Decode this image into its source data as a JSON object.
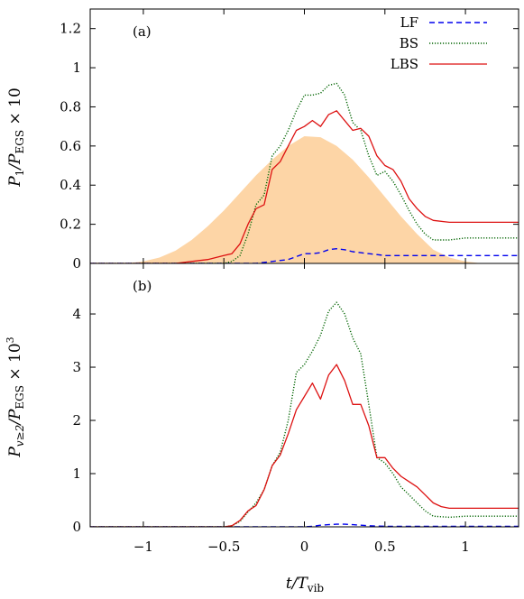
{
  "chart_data": {
    "type": "line",
    "xlabel": "t/T_vib",
    "xlim": [
      -1.33,
      1.33
    ],
    "xticks": [
      -1,
      -0.5,
      0,
      0.5,
      1
    ],
    "xtick_labels": [
      "−1",
      "−0.5",
      "0",
      "0.5",
      "1"
    ],
    "legend": {
      "placement": "top-right",
      "entries": [
        {
          "name": "LF",
          "color": "#0000ee",
          "style": "dashed"
        },
        {
          "name": "BS",
          "color": "#006400",
          "style": "dotted"
        },
        {
          "name": "LBS",
          "color": "#dd1111",
          "style": "solid"
        }
      ]
    },
    "panels": [
      {
        "label": "(a)",
        "ylabel": "P_1/P_EGS × 10",
        "ylim": [
          0,
          1.3
        ],
        "yticks": [
          0,
          0.2,
          0.4,
          0.6,
          0.8,
          1,
          1.2
        ],
        "ytick_labels": [
          "0",
          "0.2",
          "0.4",
          "0.6",
          "0.8",
          "1",
          "1.2"
        ],
        "pulse": {
          "color": "#fdd5a6",
          "x": [
            -1.1,
            -1.0,
            -0.9,
            -0.8,
            -0.7,
            -0.6,
            -0.5,
            -0.4,
            -0.3,
            -0.2,
            -0.1,
            0.0,
            0.1,
            0.2,
            0.3,
            0.4,
            0.5,
            0.6,
            0.7,
            0.8,
            0.9,
            1.0,
            1.1
          ],
          "y": [
            0.0,
            0.01,
            0.03,
            0.065,
            0.12,
            0.19,
            0.27,
            0.36,
            0.45,
            0.53,
            0.6,
            0.65,
            0.645,
            0.6,
            0.53,
            0.44,
            0.34,
            0.24,
            0.15,
            0.07,
            0.03,
            0.01,
            0.0
          ]
        },
        "series": [
          {
            "name": "LF",
            "x": [
              -1.33,
              -0.4,
              -0.3,
              -0.2,
              -0.1,
              0.0,
              0.05,
              0.1,
              0.15,
              0.2,
              0.25,
              0.3,
              0.35,
              0.4,
              0.45,
              0.5,
              0.6,
              0.7,
              0.8,
              1.0,
              1.2,
              1.33
            ],
            "y": [
              0.0,
              0.0,
              0.0,
              0.01,
              0.02,
              0.05,
              0.05,
              0.055,
              0.07,
              0.075,
              0.07,
              0.06,
              0.055,
              0.05,
              0.045,
              0.04,
              0.04,
              0.04,
              0.04,
              0.04,
              0.04,
              0.04
            ]
          },
          {
            "name": "BS",
            "x": [
              -1.33,
              -0.5,
              -0.45,
              -0.4,
              -0.35,
              -0.3,
              -0.25,
              -0.2,
              -0.15,
              -0.1,
              -0.05,
              0.0,
              0.05,
              0.1,
              0.15,
              0.2,
              0.25,
              0.3,
              0.35,
              0.4,
              0.45,
              0.5,
              0.55,
              0.6,
              0.65,
              0.7,
              0.75,
              0.8,
              0.9,
              1.0,
              1.2,
              1.33
            ],
            "y": [
              0.0,
              0.0,
              0.01,
              0.04,
              0.15,
              0.3,
              0.35,
              0.55,
              0.6,
              0.68,
              0.78,
              0.86,
              0.86,
              0.87,
              0.91,
              0.92,
              0.86,
              0.72,
              0.68,
              0.55,
              0.45,
              0.47,
              0.42,
              0.35,
              0.27,
              0.2,
              0.15,
              0.12,
              0.12,
              0.13,
              0.13,
              0.13
            ]
          },
          {
            "name": "LBS",
            "x": [
              -1.33,
              -0.8,
              -0.7,
              -0.6,
              -0.5,
              -0.45,
              -0.4,
              -0.35,
              -0.3,
              -0.25,
              -0.2,
              -0.15,
              -0.1,
              -0.05,
              0.0,
              0.05,
              0.1,
              0.15,
              0.2,
              0.25,
              0.3,
              0.35,
              0.4,
              0.45,
              0.5,
              0.55,
              0.6,
              0.65,
              0.7,
              0.75,
              0.8,
              0.9,
              1.0,
              1.2,
              1.33
            ],
            "y": [
              0.0,
              0.0,
              0.01,
              0.02,
              0.04,
              0.05,
              0.1,
              0.2,
              0.28,
              0.3,
              0.48,
              0.52,
              0.6,
              0.68,
              0.7,
              0.73,
              0.7,
              0.76,
              0.78,
              0.73,
              0.68,
              0.69,
              0.65,
              0.55,
              0.5,
              0.48,
              0.42,
              0.33,
              0.28,
              0.24,
              0.22,
              0.21,
              0.21,
              0.21,
              0.21
            ]
          }
        ]
      },
      {
        "label": "(b)",
        "ylabel": "P_{v≥2}/P_EGS × 10^3",
        "ylim": [
          0,
          4.95
        ],
        "yticks": [
          0,
          1,
          2,
          3,
          4
        ],
        "ytick_labels": [
          "0",
          "1",
          "2",
          "3",
          "4"
        ],
        "series": [
          {
            "name": "LF",
            "x": [
              -1.33,
              0.0,
              0.05,
              0.1,
              0.15,
              0.2,
              0.25,
              0.3,
              0.35,
              0.4,
              0.5,
              0.6,
              0.7,
              0.8,
              1.0,
              1.33
            ],
            "y": [
              0.0,
              0.0,
              0.01,
              0.03,
              0.04,
              0.05,
              0.05,
              0.04,
              0.03,
              0.02,
              0.01,
              0.01,
              0.01,
              0.01,
              0.01,
              0.01
            ]
          },
          {
            "name": "BS",
            "x": [
              -1.33,
              -0.5,
              -0.45,
              -0.4,
              -0.35,
              -0.3,
              -0.25,
              -0.2,
              -0.15,
              -0.1,
              -0.05,
              0.0,
              0.05,
              0.1,
              0.15,
              0.2,
              0.25,
              0.3,
              0.35,
              0.4,
              0.45,
              0.5,
              0.55,
              0.6,
              0.65,
              0.7,
              0.75,
              0.8,
              0.9,
              1.0,
              1.33
            ],
            "y": [
              0.0,
              0.0,
              0.02,
              0.1,
              0.28,
              0.45,
              0.7,
              1.15,
              1.4,
              2.0,
              2.9,
              3.05,
              3.3,
              3.6,
              4.05,
              4.22,
              4.0,
              3.55,
              3.25,
              2.3,
              1.3,
              1.2,
              1.0,
              0.75,
              0.6,
              0.45,
              0.3,
              0.2,
              0.18,
              0.2,
              0.2
            ]
          },
          {
            "name": "LBS",
            "x": [
              -1.33,
              -0.5,
              -0.45,
              -0.4,
              -0.35,
              -0.3,
              -0.25,
              -0.2,
              -0.15,
              -0.1,
              -0.05,
              0.0,
              0.05,
              0.1,
              0.15,
              0.2,
              0.25,
              0.3,
              0.35,
              0.4,
              0.45,
              0.5,
              0.55,
              0.6,
              0.65,
              0.7,
              0.75,
              0.8,
              0.85,
              0.9,
              1.0,
              1.33
            ],
            "y": [
              0.0,
              0.0,
              0.02,
              0.12,
              0.3,
              0.4,
              0.7,
              1.15,
              1.35,
              1.75,
              2.2,
              2.45,
              2.7,
              2.4,
              2.85,
              3.05,
              2.75,
              2.3,
              2.3,
              1.9,
              1.3,
              1.3,
              1.1,
              0.95,
              0.85,
              0.75,
              0.6,
              0.45,
              0.38,
              0.35,
              0.35,
              0.35
            ]
          }
        ]
      }
    ]
  }
}
